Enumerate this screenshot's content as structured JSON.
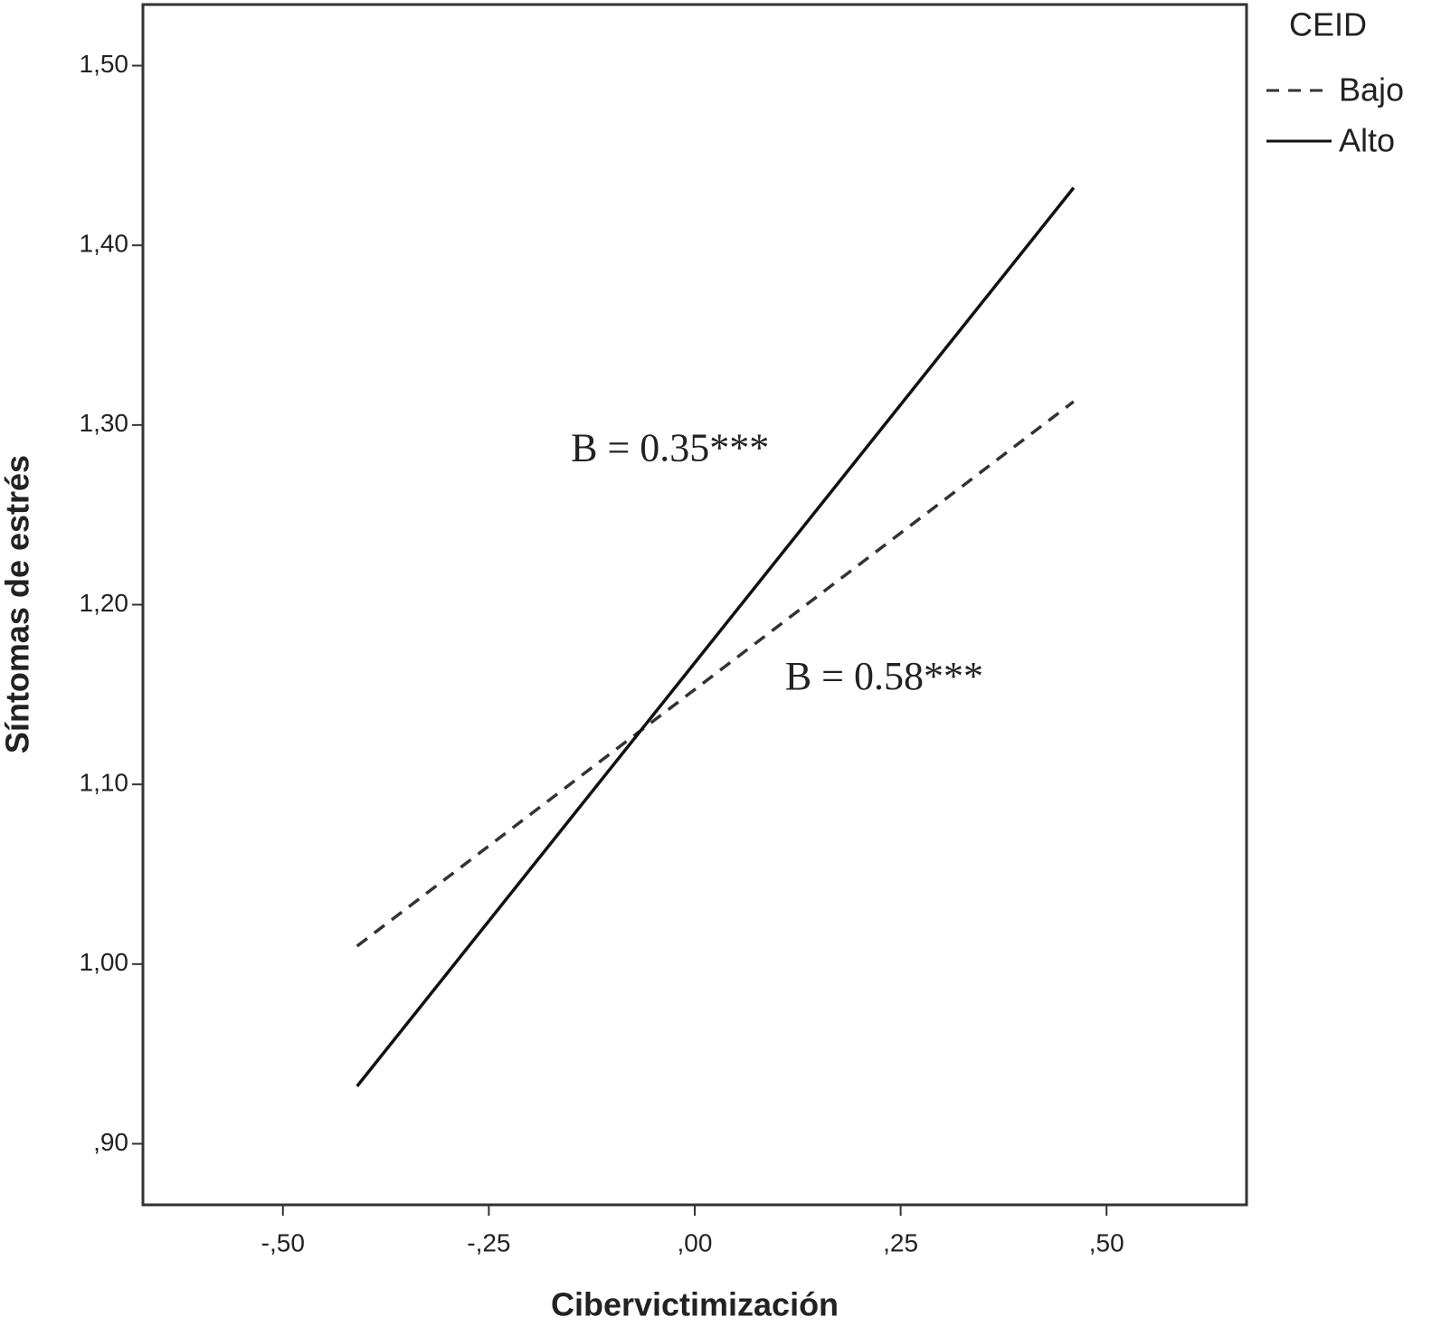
{
  "chart_data": {
    "type": "line",
    "x_label": "Cibervictimización",
    "y_label": "Síntomas de estrés",
    "x": [
      -0.41,
      0.46
    ],
    "series": [
      {
        "name": "Bajo",
        "color": "#333333",
        "line_style": "dashed",
        "values": [
          1.01,
          1.313
        ]
      },
      {
        "name": "Alto",
        "color": "#111111",
        "line_style": "solid",
        "values": [
          0.932,
          1.432
        ]
      }
    ],
    "legend_title": "CEID",
    "legend": "outside-top-right",
    "annotations": [
      {
        "text": "B = 0.35***",
        "x": -0.03,
        "y": 1.285
      },
      {
        "text": "B = 0.58***",
        "x": 0.23,
        "y": 1.158
      }
    ],
    "xlim": [
      -0.67,
      0.67
    ],
    "ylim": [
      0.866,
      1.534
    ],
    "xticks": [
      {
        "value": -0.5,
        "label": "-,50"
      },
      {
        "value": -0.25,
        "label": "-,25"
      },
      {
        "value": 0,
        "label": ",00"
      },
      {
        "value": 0.25,
        "label": ",25"
      },
      {
        "value": 0.5,
        "label": ",50"
      }
    ],
    "yticks": [
      {
        "value": 0.9,
        "label": ",90"
      },
      {
        "value": 1.0,
        "label": "1,00"
      },
      {
        "value": 1.1,
        "label": "1,10"
      },
      {
        "value": 1.2,
        "label": "1,20"
      },
      {
        "value": 1.3,
        "label": "1,30"
      },
      {
        "value": 1.4,
        "label": "1,40"
      },
      {
        "value": 1.5,
        "label": "1,50"
      }
    ],
    "grid": false
  }
}
